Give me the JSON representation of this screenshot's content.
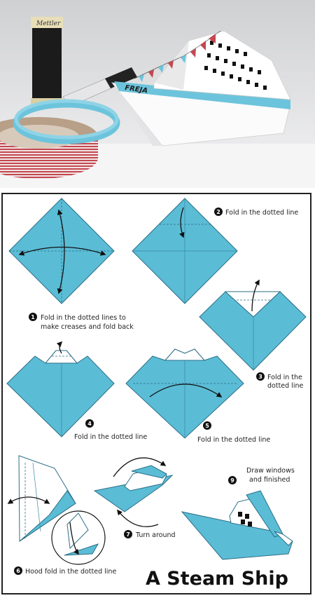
{
  "photo": {
    "boat_name": "FREJA",
    "thread_label": "Mettler"
  },
  "steps": [
    {
      "number": "1",
      "text_line1": "Fold in the dotted lines to",
      "text_line2": "make creases and fold back"
    },
    {
      "number": "2",
      "text_line1": "Fold in the dotted line",
      "text_line2": ""
    },
    {
      "number": "3",
      "text_line1": "Fold in the",
      "text_line2": "dotted line"
    },
    {
      "number": "4",
      "text_line1": "Fold in the dotted line",
      "text_line2": ""
    },
    {
      "number": "5",
      "text_line1": "Fold in the dotted line",
      "text_line2": ""
    },
    {
      "number": "6",
      "text_line1": "Hood fold in the dotted line",
      "text_line2": ""
    },
    {
      "number": "7",
      "text_line1": "Turn around",
      "text_line2": ""
    },
    {
      "number": "9",
      "text_line1": "Draw windows",
      "text_line2": "and finished"
    }
  ],
  "title": "A Steam Ship",
  "colors": {
    "paper": "#5bbcd6",
    "paper_edge": "#2b6f86",
    "tape_blue": "#6cc4dc",
    "tape_red": "#c4474f"
  }
}
